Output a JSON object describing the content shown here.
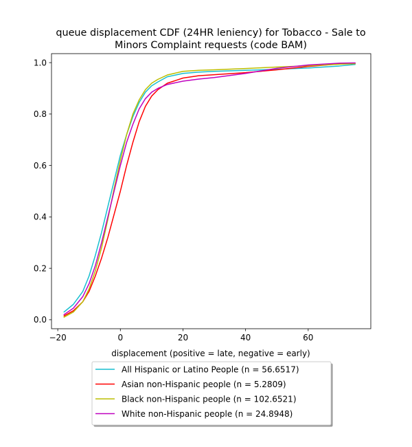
{
  "chart_data": {
    "type": "line",
    "title_lines": [
      "queue displacement CDF (24HR leniency) for Tobacco - Sale to",
      "Minors Complaint  requests (code BAM)"
    ],
    "xlabel": "displacement (positive = late, negative = early)",
    "ylabel": "",
    "xlim": [
      -22,
      80
    ],
    "ylim": [
      -0.035,
      1.035
    ],
    "x_ticks": [
      -20,
      0,
      20,
      40,
      60
    ],
    "x_tick_labels": [
      "−20",
      "0",
      "20",
      "40",
      "60"
    ],
    "y_ticks": [
      0.0,
      0.2,
      0.4,
      0.6,
      0.8,
      1.0
    ],
    "y_tick_labels": [
      "0.0",
      "0.2",
      "0.4",
      "0.6",
      "0.8",
      "1.0"
    ],
    "grid": false,
    "legend_placement": "below plot, centered",
    "series": [
      {
        "name": "All Hispanic or Latino People (n = 56.6517)",
        "color": "#17becf",
        "x": [
          -18,
          -15,
          -12,
          -10,
          -8,
          -6,
          -4,
          -2,
          0,
          2,
          4,
          6,
          8,
          10,
          12,
          15,
          20,
          25,
          30,
          40,
          50,
          60,
          70,
          75
        ],
        "y": [
          0.03,
          0.06,
          0.11,
          0.17,
          0.25,
          0.34,
          0.44,
          0.54,
          0.64,
          0.72,
          0.79,
          0.845,
          0.885,
          0.91,
          0.925,
          0.945,
          0.958,
          0.963,
          0.966,
          0.97,
          0.974,
          0.979,
          0.987,
          0.993
        ]
      },
      {
        "name": "Asian non-Hispanic people (n = 5.2809)",
        "color": "#ff0000",
        "x": [
          -18,
          -15,
          -12,
          -10,
          -8,
          -6,
          -4,
          -2,
          0,
          2,
          4,
          6,
          8,
          10,
          12,
          15,
          20,
          25,
          30,
          40,
          50,
          60,
          70,
          75
        ],
        "y": [
          0.015,
          0.035,
          0.07,
          0.11,
          0.17,
          0.24,
          0.32,
          0.41,
          0.5,
          0.6,
          0.69,
          0.77,
          0.83,
          0.87,
          0.895,
          0.92,
          0.94,
          0.949,
          0.953,
          0.961,
          0.972,
          0.985,
          0.995,
          0.997
        ]
      },
      {
        "name": "Black non-Hispanic people (n = 102.6521)",
        "color": "#bcbd00",
        "x": [
          -18,
          -15,
          -12,
          -10,
          -8,
          -6,
          -4,
          -2,
          0,
          2,
          4,
          6,
          8,
          10,
          12,
          15,
          20,
          25,
          30,
          40,
          50,
          60,
          70,
          75
        ],
        "y": [
          0.01,
          0.03,
          0.07,
          0.12,
          0.19,
          0.28,
          0.39,
          0.51,
          0.62,
          0.72,
          0.8,
          0.855,
          0.895,
          0.92,
          0.935,
          0.952,
          0.966,
          0.97,
          0.972,
          0.977,
          0.983,
          0.988,
          0.994,
          0.996
        ]
      },
      {
        "name": "White non-Hispanic people (n = 24.8948)",
        "color": "#bf00bf",
        "x": [
          -18,
          -15,
          -12,
          -10,
          -8,
          -6,
          -4,
          -2,
          0,
          2,
          4,
          6,
          8,
          10,
          12,
          15,
          20,
          25,
          30,
          40,
          50,
          60,
          70,
          75
        ],
        "y": [
          0.02,
          0.045,
          0.09,
          0.14,
          0.21,
          0.3,
          0.4,
          0.5,
          0.6,
          0.69,
          0.76,
          0.82,
          0.86,
          0.885,
          0.9,
          0.915,
          0.928,
          0.936,
          0.942,
          0.958,
          0.978,
          0.991,
          0.998,
          0.999
        ]
      }
    ]
  }
}
